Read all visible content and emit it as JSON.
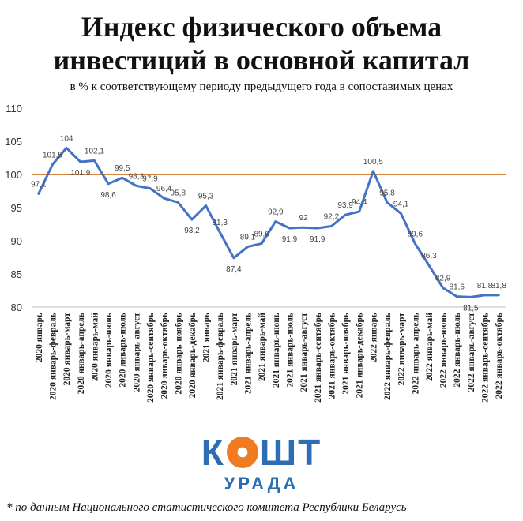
{
  "header": {
    "title_line1": "Индекс физического объема",
    "title_line2": "инвестиций в основной капитал",
    "subtitle": "в % к соответствующему периоду предыдущего года в сопоставимых ценах"
  },
  "logo": {
    "left": "К",
    "right": "ШТ",
    "sub": "УРАДА"
  },
  "footnote": "* по данным Национального статистического комитета Республики Беларусь",
  "colors": {
    "line": "#4472c4",
    "reference": "#d4843a",
    "logo_blue": "#2c6db4",
    "logo_orange": "#f07b21"
  },
  "chart_data": {
    "type": "line",
    "title": "Индекс физического объема инвестиций в основной капитал",
    "xlabel": "",
    "ylabel": "",
    "ylim": [
      80,
      110
    ],
    "yticks": [
      80,
      85,
      90,
      95,
      100,
      105,
      110
    ],
    "grid": false,
    "reference_line": 100,
    "categories": [
      "2020 январь",
      "2020 январь-февраль",
      "2020 январь-март",
      "2020 январь-апрель",
      "2020 январь-май",
      "2020 январь-июнь",
      "2020 январь-июль",
      "2020 январь-август",
      "2020 январь-сентябрь",
      "2020 январь-октябрь",
      "2020 январь-ноябрь",
      "2020 январь-декабрь",
      "2021 январь",
      "2021 январь-февраль",
      "2021 январь-март",
      "2021 январь-апрель",
      "2021 январь-май",
      "2021 январь-июнь",
      "2021 январь-июль",
      "2021 январь-август",
      "2021 январь-сентябрь",
      "2021 январь-октябрь",
      "2021 январь-ноябрь",
      "2021 январь-декабрь",
      "2022 январь",
      "2022 январь-февраль",
      "2022 январь-март",
      "2022 январь-апрель",
      "2022 январь-май",
      "2022 январь-июнь",
      "2022 январь-июль",
      "2022 январь-август",
      "2022 январь-сентябрь",
      "2022 январь-октябрь"
    ],
    "values": [
      97.1,
      101.5,
      104,
      101.9,
      102.1,
      98.6,
      99.5,
      98.3,
      97.9,
      96.4,
      95.8,
      93.2,
      95.3,
      91.3,
      87.4,
      89.1,
      89.6,
      92.9,
      91.9,
      92,
      91.9,
      92.2,
      93.9,
      94.4,
      100.5,
      95.8,
      94.1,
      89.6,
      86.3,
      82.9,
      81.6,
      81.5,
      81.8,
      81.8
    ],
    "data_labels": [
      "97,1",
      "101,5",
      "104",
      "101,9",
      "102,1",
      "98,6",
      "99,5",
      "98,3",
      "97,9",
      "96,4",
      "95,8",
      "93,2",
      "95,3",
      "91,3",
      "87,4",
      "89,1",
      "89,6",
      "92,9",
      "91,9",
      "92",
      "91,9",
      "92,2",
      "93,9",
      "94,4",
      "100,5",
      "95,8",
      "94,1",
      "89,6",
      "86,3",
      "82,9",
      "81,6",
      "81,5",
      "81,8",
      "81,8"
    ]
  }
}
